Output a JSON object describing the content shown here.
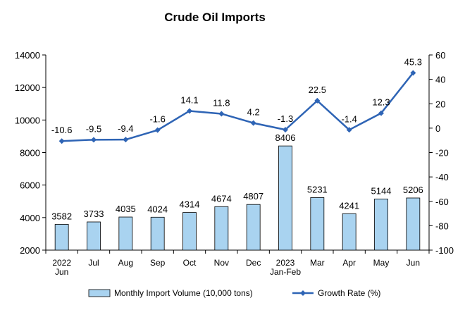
{
  "chart_data": {
    "type": "bar+line",
    "title": "Crude Oil Imports",
    "categories": [
      [
        "2022",
        "Jun"
      ],
      [
        "Jul"
      ],
      [
        "Aug"
      ],
      [
        "Sep"
      ],
      [
        "Oct"
      ],
      [
        "Nov"
      ],
      [
        "Dec"
      ],
      [
        "2023",
        "Jan-Feb"
      ],
      [
        "Mar"
      ],
      [
        "Apr"
      ],
      [
        "May"
      ],
      [
        "Jun"
      ]
    ],
    "series": [
      {
        "name": "Monthly Import Volume (10,000 tons)",
        "type": "bar",
        "axis": "left",
        "color": "#a9d3f0",
        "values": [
          3582,
          3733,
          4035,
          4024,
          4314,
          4674,
          4807,
          8406,
          5231,
          4241,
          5144,
          5206
        ]
      },
      {
        "name": "Growth Rate (%)",
        "type": "line",
        "axis": "right",
        "color": "#2e64b5",
        "values": [
          -10.6,
          -9.5,
          -9.4,
          -1.6,
          14.1,
          11.8,
          4.2,
          -1.3,
          22.5,
          -1.4,
          12.3,
          45.3
        ]
      }
    ],
    "y_left": {
      "min": 2000,
      "max": 14000,
      "ticks": [
        2000,
        4000,
        6000,
        8000,
        10000,
        12000,
        14000
      ]
    },
    "y_right": {
      "min": -100,
      "max": 60,
      "ticks": [
        -100,
        -80,
        -60,
        -40,
        -20,
        0,
        20,
        40,
        60
      ]
    },
    "legend": "bottom",
    "grid": false
  }
}
